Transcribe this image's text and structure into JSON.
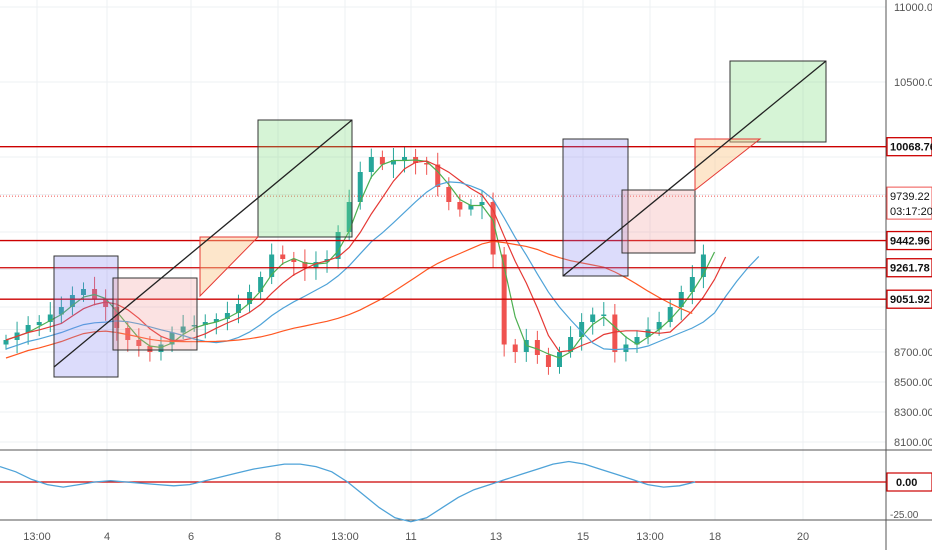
{
  "chart_data": {
    "type": "candlestick",
    "price_axis": {
      "ticks": [
        "11000.00",
        "10500.00",
        "8700.00",
        "8500.00",
        "8300.00",
        "8100.00"
      ],
      "tick_values": [
        11000,
        10500,
        8700,
        8500,
        8300,
        8100
      ]
    },
    "time_axis": {
      "ticks": [
        "13:00",
        "4",
        "6",
        "8",
        "13:00",
        "11",
        "13",
        "15",
        "13:00",
        "18",
        "20"
      ]
    },
    "horizontal_levels": [
      {
        "label": "10068.76",
        "value": 10068.76
      },
      {
        "label": "9442.96",
        "value": 9442.96
      },
      {
        "label": "9261.78",
        "value": 9261.78
      },
      {
        "label": "9051.92",
        "value": 9051.92
      }
    ],
    "current_price": {
      "label": "9739.22",
      "value": 9739.22,
      "countdown": "03:17:20"
    },
    "oscillator": {
      "ticks": [
        "0.00",
        "-25.00"
      ],
      "zero_label": "0.00"
    },
    "colors": {
      "up": "#26a69a",
      "down": "#ef5350",
      "level": "#cc0000",
      "ema_fast": "#4caf50",
      "ema_mid": "#e53935",
      "ema_slow": "#ff5722",
      "sma": "#4fa3d8",
      "oscillator": "#4fa3d8",
      "axis_text": "#555555"
    }
  }
}
